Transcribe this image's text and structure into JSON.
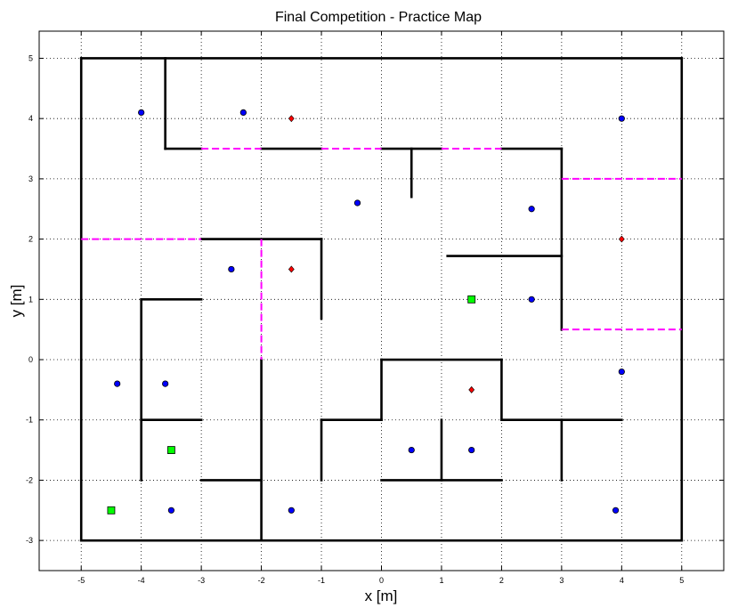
{
  "chart_data": {
    "type": "scatter",
    "title": "Final Competition - Practice Map",
    "xlabel": "x [m]",
    "ylabel": "y [m]",
    "xlim": [
      -5.7,
      5.7
    ],
    "ylim": [
      -3.5,
      5.45
    ],
    "xticks": [
      -5,
      -4,
      -3,
      -2,
      -1,
      0,
      1,
      2,
      3,
      4,
      5
    ],
    "yticks": [
      -3,
      -2,
      -1,
      0,
      1,
      2,
      3,
      4,
      5
    ],
    "grid": true,
    "colors": {
      "wall": "#000000",
      "doorway": "#ff00ff",
      "blue_marker": "#0000ff",
      "red_marker": "#ff0000",
      "green_marker": "#00ff00"
    },
    "walls": [
      [
        [
          -5,
          -3
        ],
        [
          5,
          -3
        ]
      ],
      [
        [
          -5,
          5
        ],
        [
          5,
          5
        ]
      ],
      [
        [
          -5,
          -3
        ],
        [
          -5,
          5
        ]
      ],
      [
        [
          5,
          -3
        ],
        [
          5,
          5
        ]
      ],
      [
        [
          -3.6,
          5
        ],
        [
          -3.6,
          3.5
        ]
      ],
      [
        [
          -3.6,
          3.5
        ],
        [
          -3,
          3.5
        ]
      ],
      [
        [
          -2,
          3.5
        ],
        [
          -1,
          3.5
        ]
      ],
      [
        [
          0,
          3.5
        ],
        [
          1,
          3.5
        ]
      ],
      [
        [
          2,
          3.5
        ],
        [
          3,
          3.5
        ]
      ],
      [
        [
          0.5,
          3.5
        ],
        [
          0.5,
          2.7
        ]
      ],
      [
        [
          3,
          3.5
        ],
        [
          3,
          0.5
        ]
      ],
      [
        [
          1.1,
          1.72
        ],
        [
          3,
          1.72
        ]
      ],
      [
        [
          -3,
          2
        ],
        [
          -1,
          2
        ]
      ],
      [
        [
          -1,
          2
        ],
        [
          -1,
          0.68
        ]
      ],
      [
        [
          -4,
          1
        ],
        [
          -3,
          1
        ]
      ],
      [
        [
          -4,
          1
        ],
        [
          -4,
          -2
        ]
      ],
      [
        [
          -4,
          -1
        ],
        [
          -3,
          -1
        ]
      ],
      [
        [
          -3,
          -2
        ],
        [
          -2,
          -2
        ]
      ],
      [
        [
          -2,
          0
        ],
        [
          -2,
          -3
        ]
      ],
      [
        [
          -1,
          -1
        ],
        [
          0,
          -1
        ]
      ],
      [
        [
          0,
          -1
        ],
        [
          0,
          0
        ]
      ],
      [
        [
          0,
          0
        ],
        [
          2,
          0
        ]
      ],
      [
        [
          2,
          0
        ],
        [
          2,
          -1
        ]
      ],
      [
        [
          2,
          -1
        ],
        [
          4,
          -1
        ]
      ],
      [
        [
          -1,
          -1
        ],
        [
          -1,
          -2
        ]
      ],
      [
        [
          0,
          -2
        ],
        [
          2,
          -2
        ]
      ],
      [
        [
          1,
          -1
        ],
        [
          1,
          -2
        ]
      ],
      [
        [
          3,
          -1
        ],
        [
          3,
          -2
        ]
      ]
    ],
    "doorways": [
      [
        [
          -3,
          3.5
        ],
        [
          -2,
          3.5
        ]
      ],
      [
        [
          -1,
          3.5
        ],
        [
          0,
          3.5
        ]
      ],
      [
        [
          1,
          3.5
        ],
        [
          2,
          3.5
        ]
      ],
      [
        [
          3,
          3
        ],
        [
          5,
          3
        ]
      ],
      [
        [
          3,
          0.5
        ],
        [
          5,
          0.5
        ]
      ],
      [
        [
          -5,
          2
        ],
        [
          -3,
          2
        ]
      ],
      [
        [
          -2,
          2
        ],
        [
          -2,
          0
        ]
      ]
    ],
    "series": [
      {
        "marker": "circle",
        "color": "#0000ff",
        "points": [
          [
            -4,
            4.1
          ],
          [
            -2.3,
            4.1
          ],
          [
            4,
            4
          ],
          [
            -0.4,
            2.6
          ],
          [
            2.5,
            2.5
          ],
          [
            -2.5,
            1.5
          ],
          [
            2.5,
            1
          ],
          [
            4,
            -0.2
          ],
          [
            -4.4,
            -0.4
          ],
          [
            -3.6,
            -0.4
          ],
          [
            0.5,
            -1.5
          ],
          [
            1.5,
            -1.5
          ],
          [
            -3.5,
            -2.5
          ],
          [
            -1.5,
            -2.5
          ],
          [
            3.9,
            -2.5
          ]
        ]
      },
      {
        "marker": "diamond",
        "color": "#ff0000",
        "points": [
          [
            -1.5,
            4
          ],
          [
            4,
            2
          ],
          [
            -1.5,
            1.5
          ],
          [
            1.5,
            -0.5
          ]
        ]
      },
      {
        "marker": "square",
        "color": "#00ff00",
        "points": [
          [
            1.5,
            1
          ],
          [
            -3.5,
            -1.5
          ],
          [
            -4.5,
            -2.5
          ]
        ]
      }
    ]
  }
}
